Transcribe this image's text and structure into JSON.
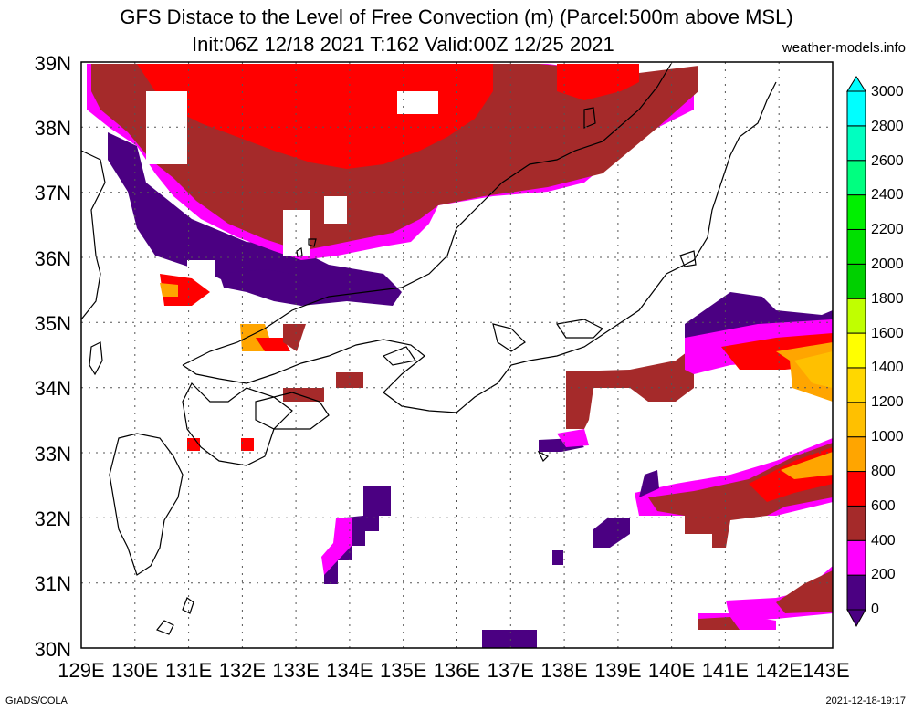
{
  "title": {
    "line1": "GFS Distace to the Level of Free Convection (m) (Parcel:500m above MSL)",
    "line2": "Init:06Z 12/18 2021 T:162 Valid:00Z 12/25 2021",
    "site": "weather-models.info"
  },
  "axes": {
    "lat_labels": [
      "39N",
      "38N",
      "37N",
      "36N",
      "35N",
      "34N",
      "33N",
      "32N",
      "31N",
      "30N"
    ],
    "lon_labels": [
      "129E",
      "130E",
      "131E",
      "132E",
      "133E",
      "134E",
      "135E",
      "136E",
      "137E",
      "138E",
      "139E",
      "140E",
      "141E",
      "142E",
      "143E"
    ]
  },
  "colorbar": {
    "ticks": [
      "0",
      "200",
      "400",
      "600",
      "800",
      "1000",
      "1200",
      "1400",
      "1600",
      "1800",
      "2000",
      "2200",
      "2400",
      "2600",
      "2800",
      "3000"
    ],
    "colors": [
      "#4b0082",
      "#ff00ff",
      "#a52a2a",
      "#ff0000",
      "#ffa500",
      "#ffc000",
      "#ffd700",
      "#ffff00",
      "#c0ff00",
      "#00d000",
      "#00e000",
      "#00f000",
      "#00ff80",
      "#00ffc0",
      "#00ffff",
      "#00ffff"
    ]
  },
  "footer": {
    "left": "GrADS/COLA",
    "right": "2021-12-18-19:17"
  }
}
